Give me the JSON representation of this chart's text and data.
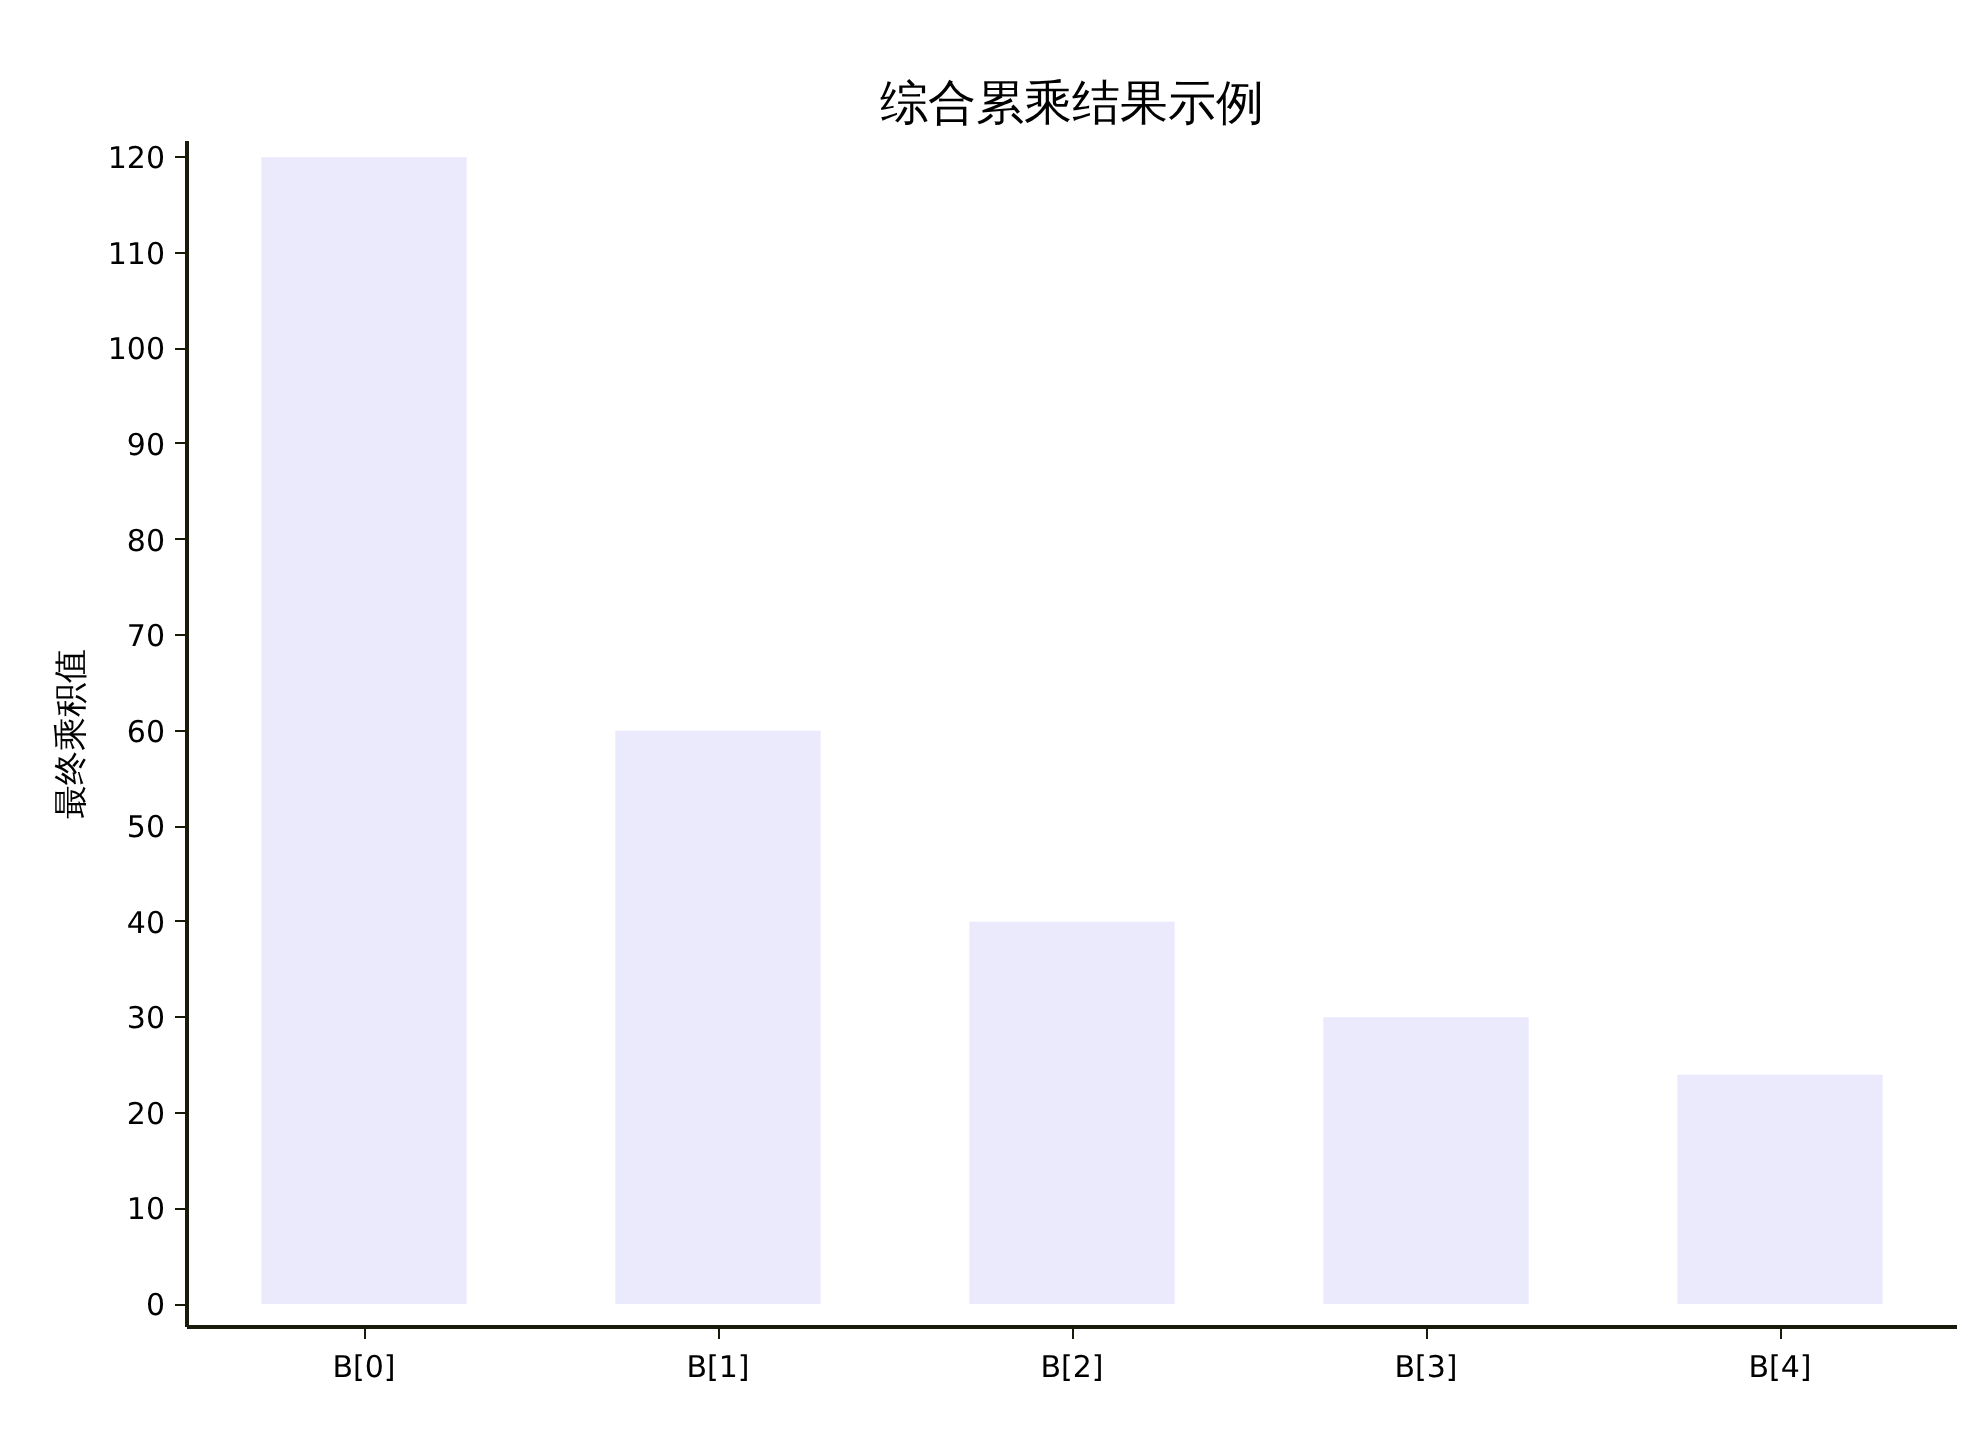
{
  "chart_data": {
    "type": "bar",
    "title": "综合累乘结果示例",
    "ylabel": "最终乘积值",
    "categories": [
      "B[0]",
      "B[1]",
      "B[2]",
      "B[3]",
      "B[4]"
    ],
    "values": [
      120,
      60,
      40,
      30,
      24
    ],
    "color": "#ebe9fc",
    "ylim": [
      -2.4,
      121.7
    ],
    "yticks": [
      0,
      10,
      20,
      30,
      40,
      50,
      60,
      70,
      80,
      90,
      100,
      110,
      120
    ],
    "grid": false
  }
}
